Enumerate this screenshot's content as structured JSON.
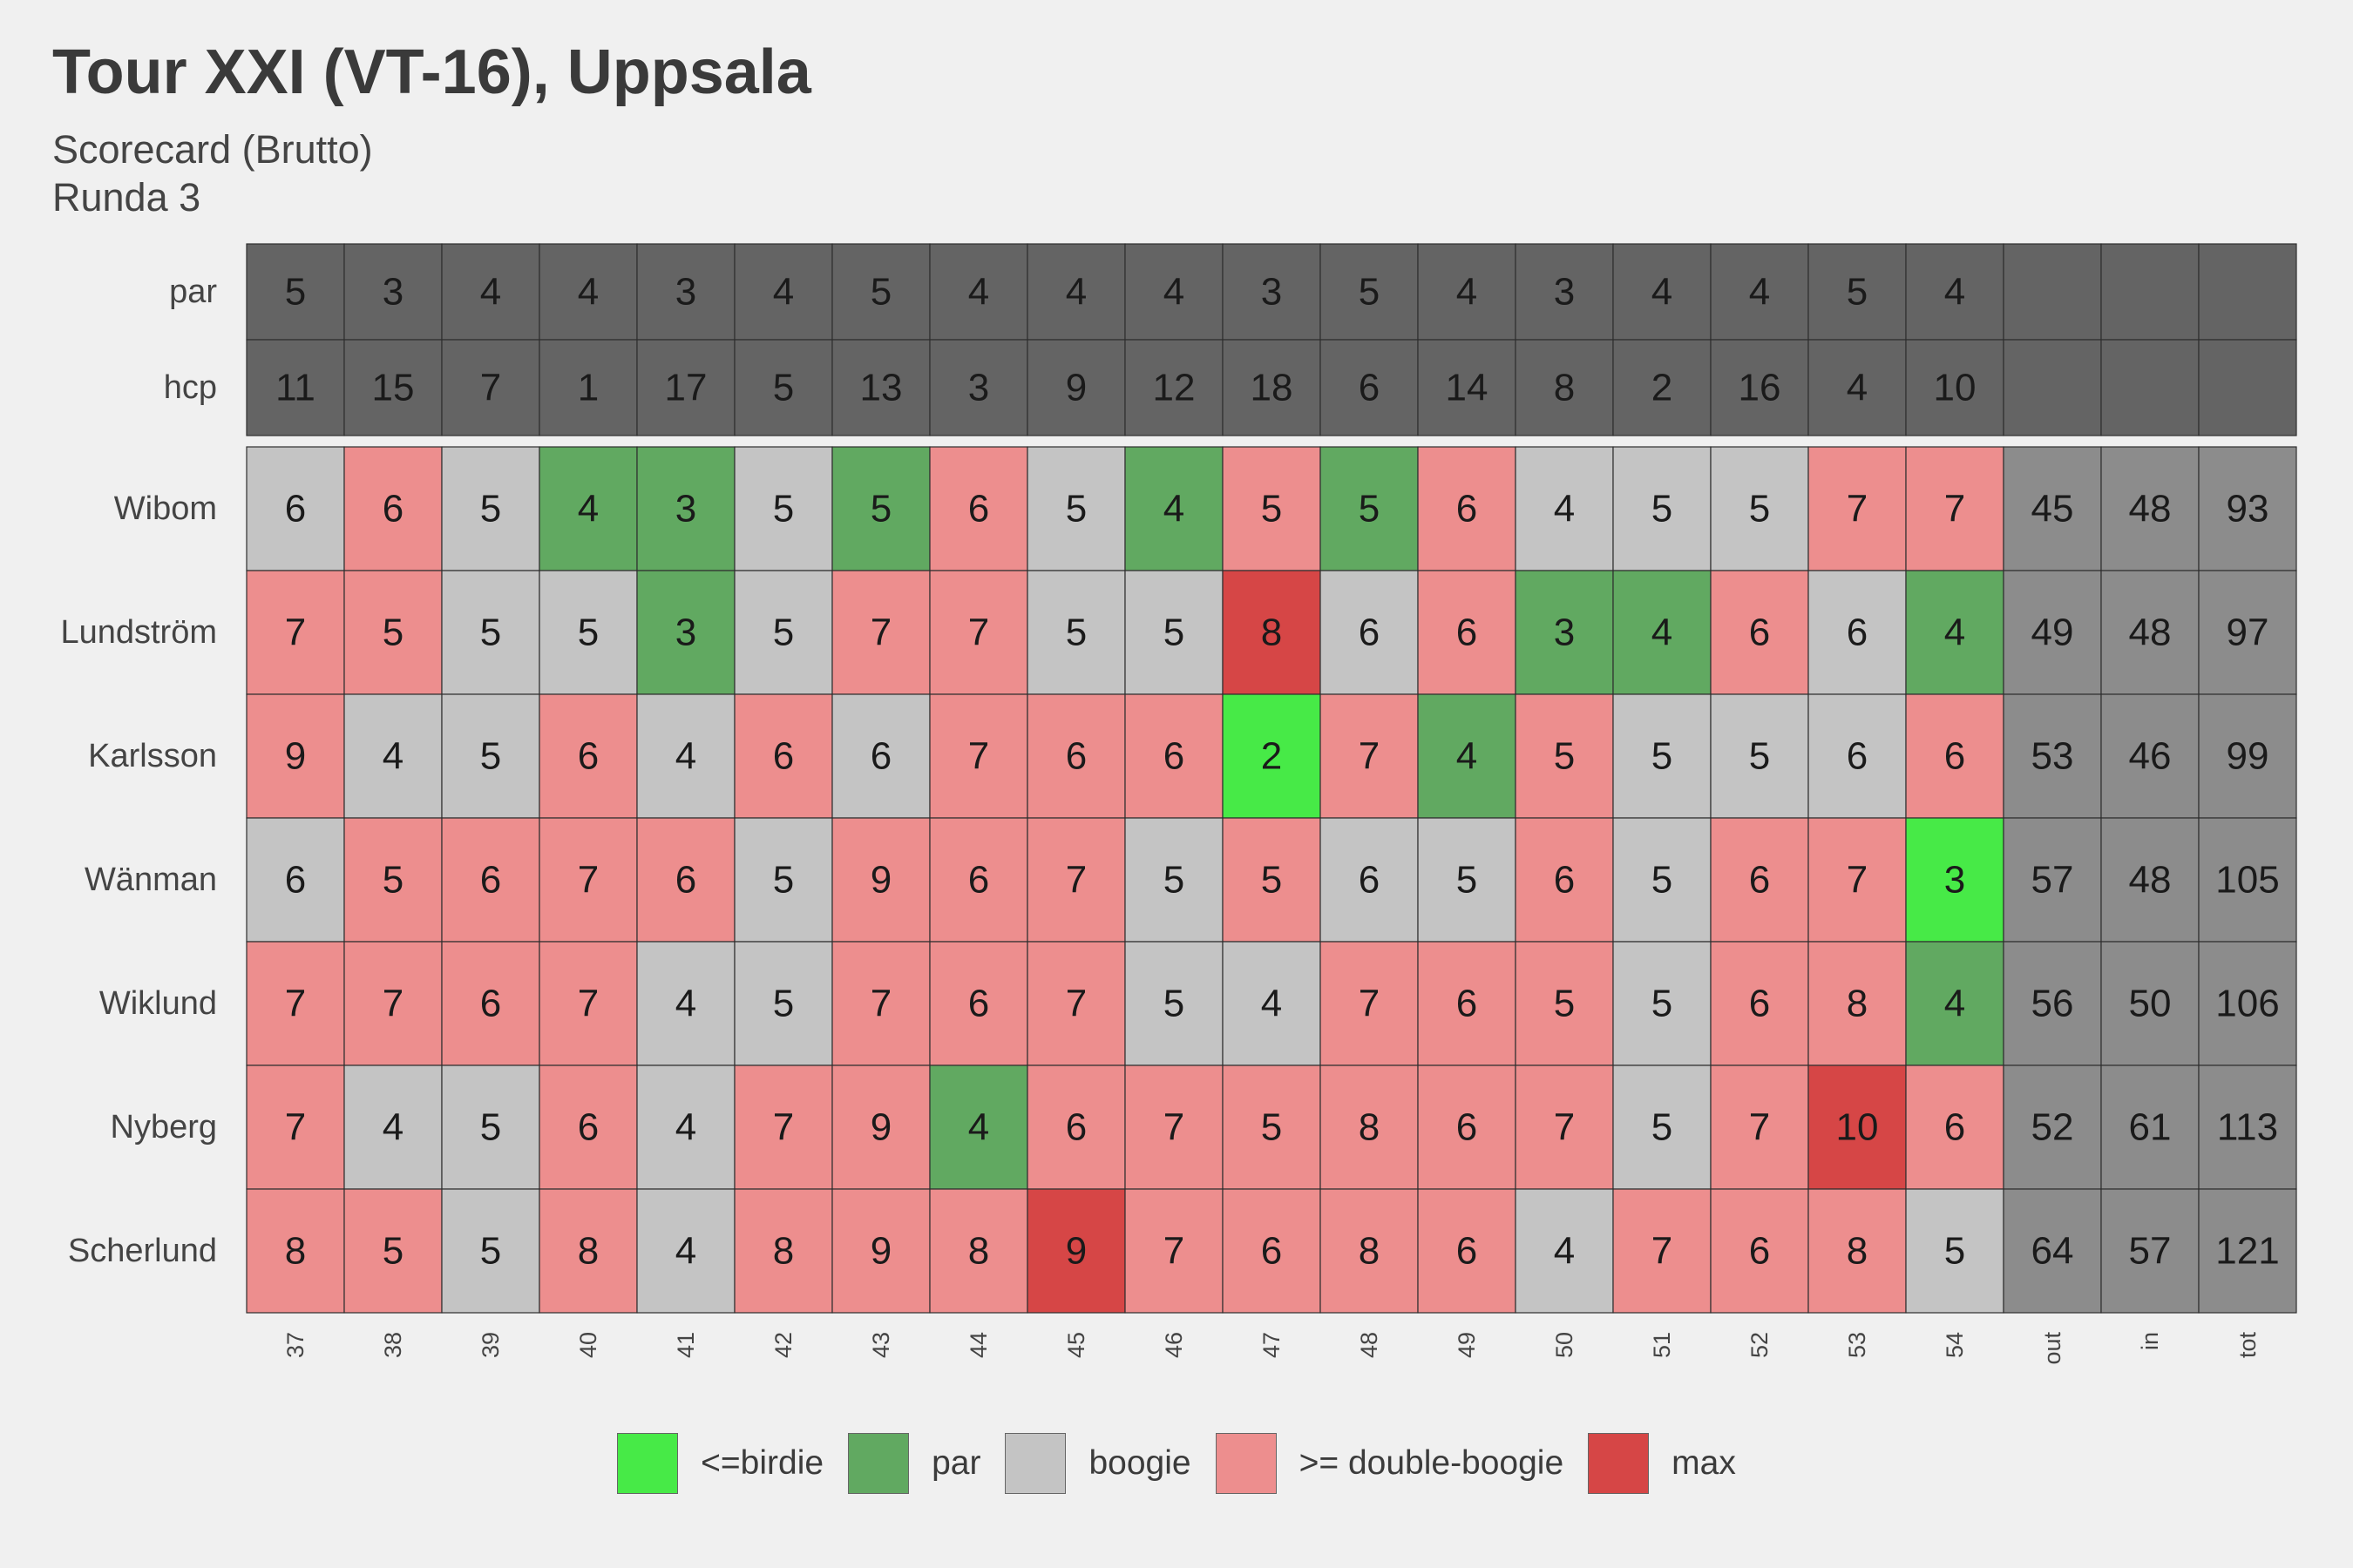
{
  "title": "Tour XXI (VT-16), Uppsala",
  "subtitle_line1": "Scorecard (Brutto)",
  "subtitle_line2": "Runda 3",
  "chart_data": {
    "type": "heatmap",
    "columns": [
      "37",
      "38",
      "39",
      "40",
      "41",
      "42",
      "43",
      "44",
      "45",
      "46",
      "47",
      "48",
      "49",
      "50",
      "51",
      "52",
      "53",
      "54",
      "out",
      "in",
      "tot"
    ],
    "header_rows": [
      {
        "label": "par",
        "values": [
          "5",
          "3",
          "4",
          "4",
          "3",
          "4",
          "5",
          "4",
          "4",
          "4",
          "3",
          "5",
          "4",
          "3",
          "4",
          "4",
          "5",
          "4",
          "",
          "",
          ""
        ]
      },
      {
        "label": "hcp",
        "values": [
          "11",
          "15",
          "7",
          "1",
          "17",
          "5",
          "13",
          "3",
          "9",
          "12",
          "18",
          "6",
          "14",
          "8",
          "2",
          "16",
          "4",
          "10",
          "",
          "",
          ""
        ]
      }
    ],
    "players": [
      {
        "name": "Wibom",
        "scores": [
          6,
          6,
          5,
          4,
          3,
          5,
          5,
          6,
          5,
          4,
          5,
          5,
          6,
          4,
          5,
          5,
          7,
          7
        ],
        "out": 45,
        "in": 48,
        "tot": 93
      },
      {
        "name": "Lundström",
        "scores": [
          7,
          5,
          5,
          5,
          3,
          5,
          7,
          7,
          5,
          5,
          8,
          6,
          6,
          3,
          4,
          6,
          6,
          4
        ],
        "out": 49,
        "in": 48,
        "tot": 97
      },
      {
        "name": "Karlsson",
        "scores": [
          9,
          4,
          5,
          6,
          4,
          6,
          6,
          7,
          6,
          6,
          2,
          7,
          4,
          5,
          5,
          5,
          6,
          6
        ],
        "out": 53,
        "in": 46,
        "tot": 99
      },
      {
        "name": "Wänman",
        "scores": [
          6,
          5,
          6,
          7,
          6,
          5,
          9,
          6,
          7,
          5,
          5,
          6,
          5,
          6,
          5,
          6,
          7,
          3
        ],
        "out": 57,
        "in": 48,
        "tot": 105
      },
      {
        "name": "Wiklund",
        "scores": [
          7,
          7,
          6,
          7,
          4,
          5,
          7,
          6,
          7,
          5,
          4,
          7,
          6,
          5,
          5,
          6,
          8,
          4
        ],
        "out": 56,
        "in": 50,
        "tot": 106
      },
      {
        "name": "Nyberg",
        "scores": [
          7,
          4,
          5,
          6,
          4,
          7,
          9,
          4,
          6,
          7,
          5,
          8,
          6,
          7,
          5,
          7,
          10,
          6
        ],
        "out": 52,
        "in": 61,
        "tot": 113
      },
      {
        "name": "Scherlund",
        "scores": [
          8,
          5,
          5,
          8,
          4,
          8,
          9,
          8,
          9,
          7,
          6,
          8,
          6,
          4,
          7,
          6,
          8,
          5
        ],
        "out": 64,
        "in": 57,
        "tot": 121
      }
    ],
    "categories": [
      {
        "key": "birdie",
        "label": "<=birdie",
        "color": "#47ea47"
      },
      {
        "key": "par",
        "label": "par",
        "color": "#61a961"
      },
      {
        "key": "bogey",
        "label": "boogie",
        "color": "#c4c4c4"
      },
      {
        "key": "double",
        "label": ">= double-boogie",
        "color": "#ed8e8e"
      },
      {
        "key": "max",
        "label": "max",
        "color": "#d64646"
      }
    ],
    "max_cells": [
      {
        "player": "Lundström",
        "hole": "47"
      },
      {
        "player": "Nyberg",
        "hole": "53"
      },
      {
        "player": "Scherlund",
        "hole": "45"
      }
    ],
    "header_color": "#646464",
    "total_color": "#8c8c8c",
    "legend_position": "bottom"
  }
}
